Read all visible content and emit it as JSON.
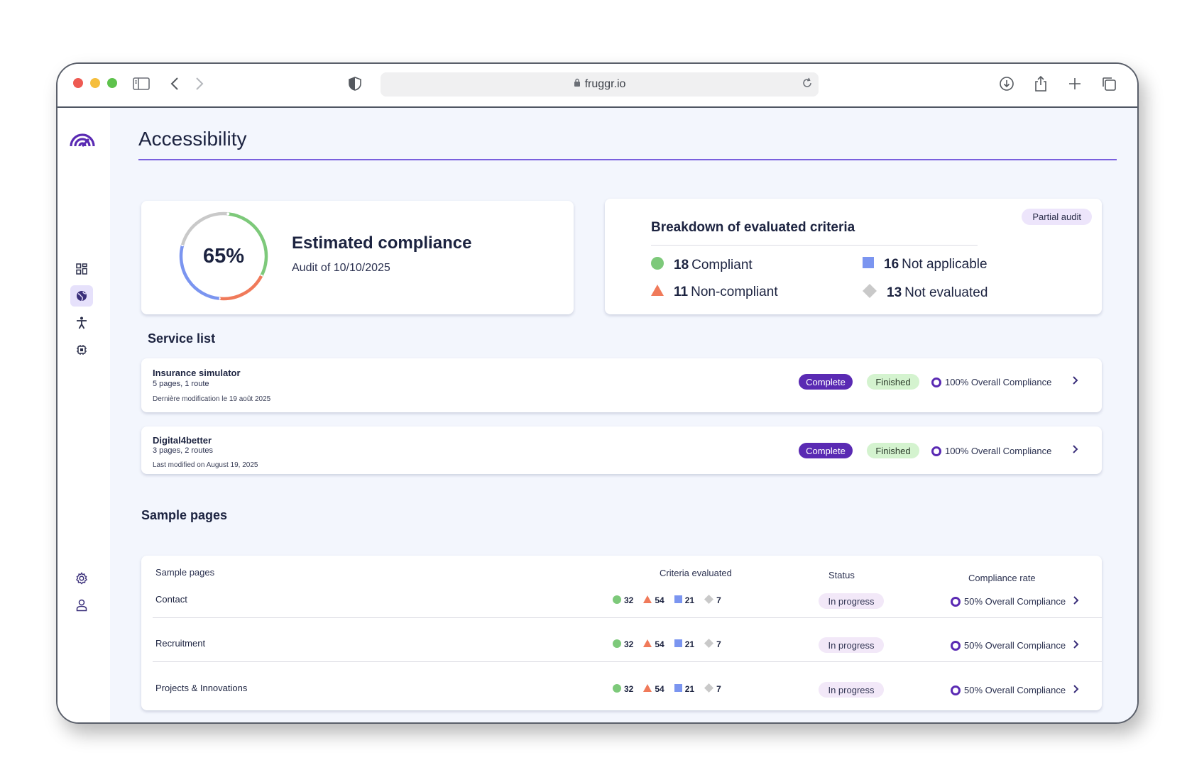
{
  "browser": {
    "url": "fruggr.io"
  },
  "page": {
    "title": "Accessibility"
  },
  "compliance": {
    "percent": 65,
    "percent_label": "65%",
    "title": "Estimated compliance",
    "subtitle": "Audit of 10/10/2025"
  },
  "breakdown": {
    "title": "Breakdown of evaluated criteria",
    "badge": "Partial audit",
    "compliant": {
      "count": "18",
      "label": "Compliant",
      "color": "#7dc97a"
    },
    "non_compliant": {
      "count": "11",
      "label": "Non-compliant",
      "color": "#f07a5a"
    },
    "not_applicable": {
      "count": "16",
      "label": "Not applicable",
      "color": "#7b95f0"
    },
    "not_evaluated": {
      "count": "13",
      "label": "Not evaluated",
      "color": "#c9c9c9"
    }
  },
  "service_list": {
    "title": "Service list",
    "items": [
      {
        "name": "Insurance simulator",
        "meta": "5 pages, 1 route",
        "modified": "Dernière modification le 19 août 2025",
        "completeness": "Complete",
        "state": "Finished",
        "compliance": "100% Overall Compliance"
      },
      {
        "name": "Digital4better",
        "meta": "3 pages, 2 routes",
        "modified": "Last modified on August 19, 2025",
        "completeness": "Complete",
        "state": "Finished",
        "compliance": "100% Overall Compliance"
      }
    ]
  },
  "sample_pages": {
    "title": "Sample pages",
    "headers": {
      "name": "Sample pages",
      "criteria": "Criteria evaluated",
      "status": "Status",
      "rate": "Compliance rate"
    },
    "rows": [
      {
        "name": "Contact",
        "compliant": "32",
        "non_compliant": "54",
        "not_applicable": "21",
        "not_evaluated": "7",
        "status": "In progress",
        "rate": "50% Overall Compliance"
      },
      {
        "name": "Recruitment",
        "compliant": "32",
        "non_compliant": "54",
        "not_applicable": "21",
        "not_evaluated": "7",
        "status": "In progress",
        "rate": "50% Overall Compliance"
      },
      {
        "name": "Projects & Innovations",
        "compliant": "32",
        "non_compliant": "54",
        "not_applicable": "21",
        "not_evaluated": "7",
        "status": "In progress",
        "rate": "50% Overall Compliance"
      }
    ]
  },
  "icons": {
    "sidebar": [
      "dashboard-icon",
      "globe-icon",
      "accessibility-icon",
      "chip-icon",
      "settings-icon",
      "user-icon"
    ]
  },
  "colors": {
    "accent": "#5a2ab3",
    "background": "#f3f6fd"
  }
}
